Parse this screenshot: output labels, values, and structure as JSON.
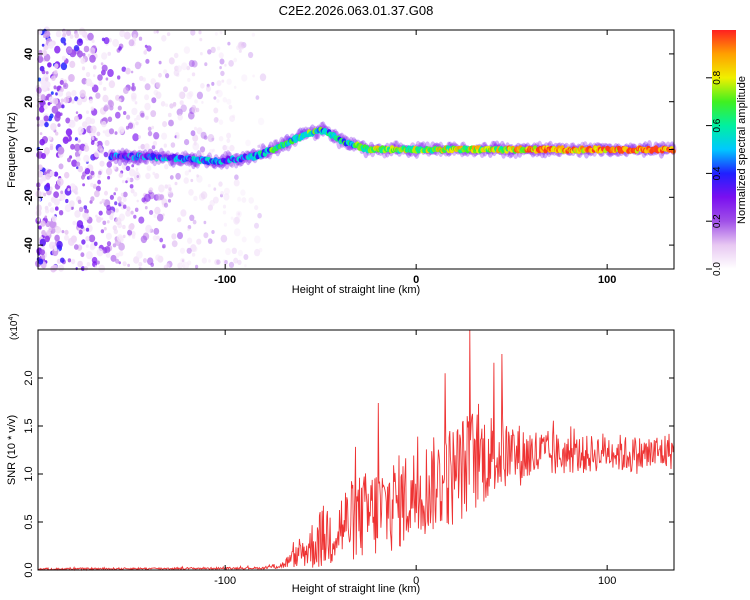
{
  "page": {
    "title": "C2E2.2026.063.01.37.G08"
  },
  "colors": {
    "background": "#ffffff",
    "frame": "#000000",
    "snr_line": "#ee3333",
    "colormap": [
      "#ffffff",
      "#e8c8f2",
      "#a050e8",
      "#7a10f0",
      "#2020ff",
      "#00c8ff",
      "#00f0a0",
      "#40f020",
      "#f0f000",
      "#ffa000",
      "#ff2020"
    ]
  },
  "chart_data": [
    {
      "id": "spectrogram",
      "type": "heatmap",
      "title": "C2E2.2026.063.01.37.G08",
      "xlabel": "Height of straight line (km)",
      "ylabel": "Frequency (Hz)",
      "xlim": [
        -198,
        135
      ],
      "ylim": [
        -50,
        50
      ],
      "xticks": [
        -100,
        0,
        100
      ],
      "yticks": [
        -40,
        -20,
        0,
        20,
        40
      ],
      "ridge": {
        "description_free": true,
        "x": [
          -160,
          -140,
          -120,
          -105,
          -95,
          -85,
          -75,
          -65,
          -55,
          -48,
          -42,
          -38,
          -32,
          -25,
          -15,
          0,
          20,
          40,
          60,
          80,
          100,
          120,
          135
        ],
        "frequency": [
          -3,
          -3,
          -4,
          -5,
          -4,
          -3,
          0,
          4,
          7,
          8,
          5,
          3,
          2,
          0,
          0,
          0,
          0,
          0,
          0,
          0,
          0,
          0,
          0
        ],
        "amplitude": [
          0.35,
          0.4,
          0.4,
          0.45,
          0.4,
          0.45,
          0.6,
          0.6,
          0.6,
          0.55,
          0.5,
          0.55,
          0.6,
          0.7,
          0.7,
          0.7,
          0.75,
          0.75,
          0.85,
          0.9,
          0.9,
          0.95,
          0.95
        ]
      },
      "noise_region_x": [
        -198,
        -80
      ]
    },
    {
      "id": "colorbar",
      "type": "heatmap",
      "ylabel": "Normalized spectral amplitude",
      "ylim": [
        0,
        1
      ],
      "yticks": [
        0.0,
        0.2,
        0.4,
        0.6,
        0.8
      ]
    },
    {
      "id": "snr",
      "type": "line",
      "xlabel": "Height of straight line (km)",
      "ylabel": "SNR (10 * v/v)",
      "scale_label": "(x10",
      "scale_exp": "4",
      "scale_close": ")",
      "xlim": [
        -198,
        135
      ],
      "ylim": [
        0,
        2.5
      ],
      "xticks": [
        -100,
        0,
        100
      ],
      "yticks": [
        0.0,
        0.5,
        1.0,
        1.5,
        2.0
      ],
      "envelope": {
        "x": [
          -198,
          -80,
          -70,
          -62,
          -55,
          -48,
          -40,
          -30,
          -20,
          -10,
          0,
          10,
          20,
          30,
          40,
          50,
          60,
          70,
          80,
          90,
          100,
          110,
          120,
          135
        ],
        "y": [
          0.01,
          0.02,
          0.05,
          0.15,
          0.25,
          0.35,
          0.45,
          0.55,
          0.6,
          0.7,
          0.8,
          0.9,
          1.0,
          1.15,
          1.2,
          1.2,
          1.2,
          1.2,
          1.2,
          1.2,
          1.25,
          1.2,
          1.2,
          1.25
        ],
        "spread": [
          0.01,
          0.01,
          0.04,
          0.12,
          0.25,
          0.35,
          0.4,
          0.45,
          0.5,
          0.5,
          0.5,
          0.5,
          0.55,
          0.55,
          0.45,
          0.35,
          0.3,
          0.25,
          0.2,
          0.2,
          0.2,
          0.2,
          0.2,
          0.2
        ]
      },
      "peaks": [
        {
          "x": -20,
          "y": 1.74
        },
        {
          "x": 28,
          "y": 2.5
        },
        {
          "x": 45,
          "y": 2.25
        },
        {
          "x": 15,
          "y": 2.05
        }
      ]
    }
  ]
}
